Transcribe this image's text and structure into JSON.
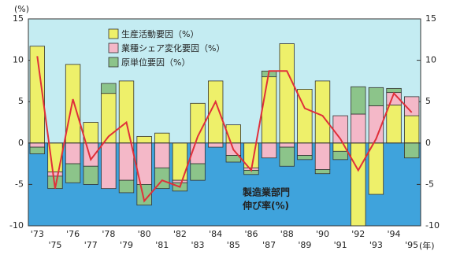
{
  "chart_data": {
    "type": "stacked-bar-line",
    "y_unit": "(%)",
    "x_unit": "(年)",
    "categories": [
      "'73",
      "'75",
      "'76",
      "'77",
      "'78",
      "'79",
      "'80",
      "'81",
      "'82",
      "'83",
      "'84",
      "'85",
      "'86",
      "'87",
      "'88",
      "'89",
      "'90",
      "'91",
      "'92",
      "'93",
      "'94",
      "'95"
    ],
    "series": [
      {
        "name": "生産活動要因（%）",
        "color": "#eef06a",
        "values": [
          11.7,
          -3.5,
          9.5,
          2.5,
          6.0,
          7.5,
          0.8,
          1.2,
          -4.5,
          4.8,
          7.5,
          2.2,
          -3.0,
          8.0,
          12.0,
          6.5,
          7.5,
          -1.0,
          -10.0,
          -6.2,
          4.6,
          3.3
        ]
      },
      {
        "name": "業種シェア変化要因（%）",
        "color": "#f4b8c8",
        "values": [
          -0.5,
          -0.5,
          -2.5,
          -2.8,
          -5.5,
          -4.5,
          -5.0,
          -3.0,
          -0.3,
          -2.5,
          -0.5,
          -1.5,
          -0.3,
          -1.8,
          -0.5,
          -1.5,
          -3.2,
          3.3,
          3.5,
          4.5,
          1.5,
          2.3
        ]
      },
      {
        "name": "原単位要因（%）",
        "color": "#8cc48a",
        "values": [
          -0.8,
          -1.5,
          -2.3,
          -2.2,
          1.2,
          -1.5,
          -2.5,
          -2.5,
          -1.0,
          -2.0,
          0,
          -0.8,
          -0.5,
          0.7,
          -2.3,
          -0.5,
          -0.5,
          -1.0,
          3.3,
          2.2,
          0.5,
          -1.8
        ]
      }
    ],
    "line": {
      "name": [
        "製造業部門",
        "伸び率(%)"
      ],
      "color": "#e0303a",
      "values": [
        10.5,
        -5.5,
        5.3,
        -2.0,
        0.8,
        2.5,
        -7.0,
        -4.5,
        -5.3,
        0.8,
        5.0,
        -0.8,
        -3.3,
        8.7,
        8.7,
        4.2,
        3.3,
        0.5,
        -3.3,
        0.5,
        6.0,
        3.7
      ]
    },
    "ylim": [
      -10,
      15
    ],
    "yticks": [
      -10,
      -5,
      0,
      5,
      10,
      15
    ],
    "background": {
      "upper": "#c4ecf2",
      "lower": "#3fa3dc"
    }
  }
}
